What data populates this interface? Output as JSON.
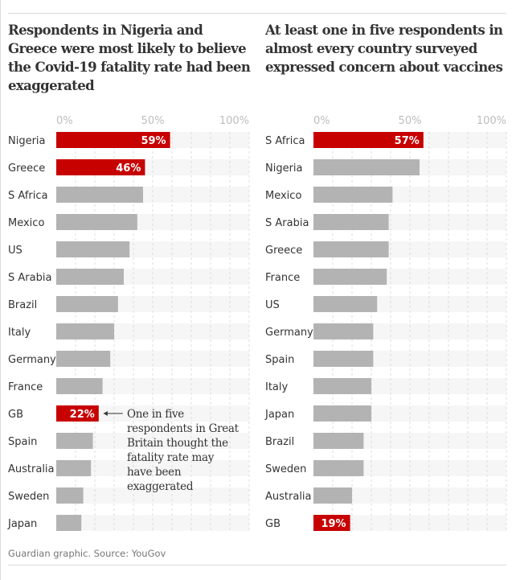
{
  "source": "Guardian graphic. Source: YouGov",
  "colors": {
    "highlight": "#c70000",
    "default": "#b3b3b3",
    "track": "#f6f6f6",
    "grid": "#dcdcdc"
  },
  "chart_data": [
    {
      "type": "bar",
      "orientation": "horizontal",
      "title": "Respondents in Nigeria and Greece were most likely to believe the Covid-19 fatality rate had been exaggerated",
      "xlim": [
        0,
        100
      ],
      "ticks": [
        "0%",
        "50%",
        "100%"
      ],
      "tick_values": [
        0,
        50,
        100
      ],
      "grid": true,
      "categories": [
        "Nigeria",
        "Greece",
        "S Africa",
        "Mexico",
        "US",
        "S Arabia",
        "Brazil",
        "Italy",
        "Germany",
        "France",
        "GB",
        "Spain",
        "Australia",
        "Sweden",
        "Japan"
      ],
      "values": [
        59,
        46,
        45,
        42,
        38,
        35,
        32,
        30,
        28,
        24,
        22,
        19,
        18,
        14,
        13
      ],
      "highlighted": [
        "Nigeria",
        "Greece",
        "GB"
      ],
      "data_labels": {
        "Nigeria": "59%",
        "Greece": "46%",
        "GB": "22%"
      },
      "annotation": {
        "target": "GB",
        "text": "One in five respondents in Great Britain thought the fatality rate may have been exaggerated"
      }
    },
    {
      "type": "bar",
      "orientation": "horizontal",
      "title": "At least one in five respondents in almost every country surveyed expressed concern about vaccines",
      "xlim": [
        0,
        100
      ],
      "ticks": [
        "0%",
        "50%",
        "100%"
      ],
      "tick_values": [
        0,
        50,
        100
      ],
      "grid": true,
      "categories": [
        "S Africa",
        "Nigeria",
        "Mexico",
        "S Arabia",
        "Greece",
        "France",
        "US",
        "Germany",
        "Spain",
        "Italy",
        "Japan",
        "Brazil",
        "Sweden",
        "Australia",
        "GB"
      ],
      "values": [
        57,
        55,
        41,
        39,
        39,
        38,
        33,
        31,
        31,
        30,
        30,
        26,
        26,
        20,
        19
      ],
      "highlighted": [
        "S Africa",
        "GB"
      ],
      "data_labels": {
        "S Africa": "57%",
        "GB": "19%"
      }
    }
  ]
}
